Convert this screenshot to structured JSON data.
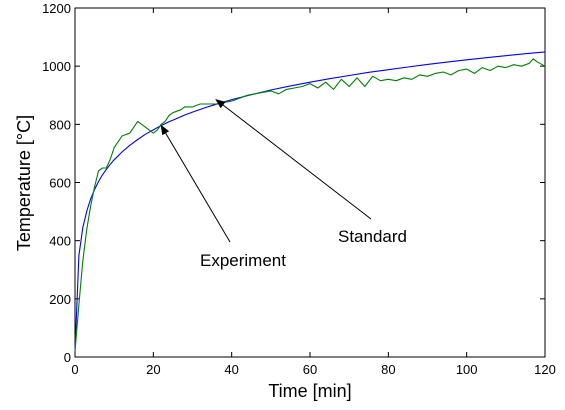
{
  "chart_data": {
    "type": "line",
    "title": "",
    "xlabel": "Time [min]",
    "ylabel": "Temperature [°C]",
    "xlim": [
      0,
      120
    ],
    "ylim": [
      0,
      1200
    ],
    "xticks": [
      0,
      20,
      40,
      60,
      80,
      100,
      120
    ],
    "yticks": [
      0,
      200,
      400,
      600,
      800,
      1000,
      1200
    ],
    "grid": false,
    "legend": "none",
    "series": [
      {
        "color": "#0000ff",
        "x": [
          0,
          1,
          2,
          3,
          4,
          5,
          6,
          7,
          8,
          9,
          10,
          12,
          14,
          16,
          18,
          20,
          22,
          24,
          26,
          28,
          30,
          33,
          36,
          40,
          45,
          50,
          55,
          60,
          65,
          70,
          75,
          80,
          85,
          90,
          95,
          100,
          105,
          110,
          115,
          120
        ],
        "y": [
          20,
          349,
          445,
          502,
          544,
          576,
          603,
          626,
          645,
          663,
          678,
          705,
          728,
          748,
          766,
          781,
          796,
          809,
          820,
          832,
          842,
          856,
          869,
          885,
          902,
          918,
          932,
          945,
          957,
          968,
          979,
          988,
          997,
          1006,
          1014,
          1022,
          1029,
          1036,
          1043,
          1049
        ]
      },
      {
        "color": "#008000",
        "x": [
          0,
          1,
          2,
          3,
          4,
          5,
          6,
          7,
          8,
          9,
          10,
          11,
          12,
          13,
          14,
          15,
          16,
          17,
          18,
          19,
          20,
          21,
          22,
          23,
          24,
          25,
          26,
          27,
          28,
          30,
          32,
          34,
          36,
          38,
          40,
          42,
          44,
          46,
          48,
          50,
          52,
          54,
          56,
          58,
          60,
          62,
          64,
          66,
          68,
          70,
          72,
          74,
          76,
          78,
          80,
          82,
          84,
          86,
          88,
          90,
          92,
          94,
          96,
          98,
          100,
          102,
          104,
          106,
          108,
          110,
          112,
          114,
          116,
          117,
          118,
          120
        ],
        "y": [
          20,
          180,
          330,
          440,
          520,
          585,
          640,
          650,
          650,
          680,
          720,
          740,
          760,
          765,
          770,
          790,
          810,
          800,
          790,
          780,
          770,
          780,
          800,
          810,
          830,
          840,
          845,
          850,
          860,
          860,
          870,
          870,
          870,
          875,
          880,
          890,
          900,
          905,
          910,
          915,
          905,
          920,
          925,
          930,
          940,
          925,
          945,
          920,
          955,
          930,
          960,
          930,
          965,
          950,
          955,
          950,
          960,
          955,
          970,
          965,
          975,
          980,
          970,
          985,
          990,
          975,
          995,
          985,
          1000,
          995,
          1005,
          1000,
          1010,
          1025,
          1015,
          1000
        ]
      }
    ],
    "annotations": [
      {
        "text": "Standard",
        "arrow_to": [
          36,
          885
        ]
      },
      {
        "text": "Experiment",
        "arrow_to": [
          22,
          796
        ]
      }
    ]
  }
}
